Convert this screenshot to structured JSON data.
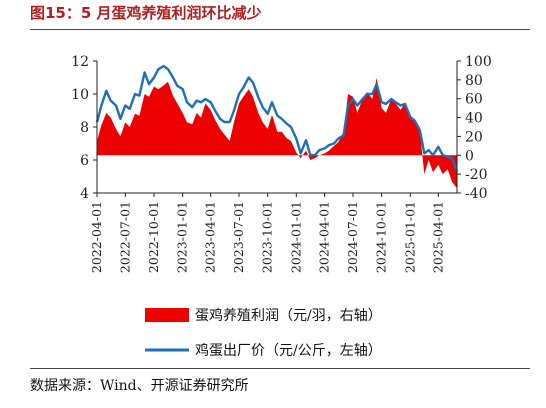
{
  "title": "图15：5 月蛋鸡养殖利润环比减少",
  "source": "数据来源：Wind、开源证券研究所",
  "colors": {
    "profit": "#ee0000",
    "price": "#1f6fb5",
    "title": "#b01e23"
  },
  "chart_data": {
    "type": "area+line",
    "x_ticks": [
      "2022-04-01",
      "2022-07-01",
      "2022-10-01",
      "2023-01-01",
      "2023-04-01",
      "2023-07-01",
      "2023-10-01",
      "2024-01-01",
      "2024-04-01",
      "2024-07-01",
      "2024-10-01",
      "2025-01-01",
      "2025-04-01"
    ],
    "y_left": {
      "min": 4,
      "max": 12,
      "ticks": [
        "4",
        "6",
        "8",
        "10",
        "12"
      ]
    },
    "y_right": {
      "min": -40,
      "max": 100,
      "ticks": [
        "-40",
        "-20",
        "0",
        "20",
        "40",
        "60",
        "80",
        "100"
      ]
    },
    "legend": "bottom",
    "series": [
      {
        "name": "蛋鸡养殖利润（元/羽，右轴）",
        "axis": "right",
        "kind": "area",
        "points": [
          [
            "2022-04-01",
            15
          ],
          [
            "2022-04-15",
            32
          ],
          [
            "2022-05-01",
            45
          ],
          [
            "2022-05-15",
            40
          ],
          [
            "2022-06-01",
            28
          ],
          [
            "2022-06-15",
            20
          ],
          [
            "2022-07-01",
            35
          ],
          [
            "2022-07-15",
            30
          ],
          [
            "2022-08-01",
            44
          ],
          [
            "2022-08-15",
            42
          ],
          [
            "2022-09-01",
            65
          ],
          [
            "2022-09-15",
            62
          ],
          [
            "2022-10-01",
            73
          ],
          [
            "2022-10-15",
            70
          ],
          [
            "2022-11-01",
            74
          ],
          [
            "2022-11-15",
            78
          ],
          [
            "2022-12-01",
            63
          ],
          [
            "2022-12-15",
            55
          ],
          [
            "2023-01-01",
            45
          ],
          [
            "2023-01-15",
            35
          ],
          [
            "2023-02-01",
            33
          ],
          [
            "2023-02-15",
            45
          ],
          [
            "2023-03-01",
            40
          ],
          [
            "2023-03-15",
            55
          ],
          [
            "2023-04-01",
            48
          ],
          [
            "2023-04-15",
            38
          ],
          [
            "2023-05-01",
            28
          ],
          [
            "2023-05-15",
            22
          ],
          [
            "2023-06-01",
            15
          ],
          [
            "2023-06-15",
            35
          ],
          [
            "2023-07-01",
            55
          ],
          [
            "2023-07-15",
            62
          ],
          [
            "2023-08-01",
            70
          ],
          [
            "2023-08-15",
            62
          ],
          [
            "2023-09-01",
            45
          ],
          [
            "2023-09-15",
            35
          ],
          [
            "2023-10-01",
            28
          ],
          [
            "2023-10-15",
            43
          ],
          [
            "2023-11-01",
            25
          ],
          [
            "2023-11-15",
            25
          ],
          [
            "2023-12-01",
            18
          ],
          [
            "2023-12-15",
            15
          ],
          [
            "2024-01-01",
            3
          ],
          [
            "2024-01-15",
            -3
          ],
          [
            "2024-02-01",
            5
          ],
          [
            "2024-02-15",
            -5
          ],
          [
            "2024-03-01",
            -3
          ],
          [
            "2024-03-15",
            0
          ],
          [
            "2024-04-01",
            2
          ],
          [
            "2024-04-15",
            5
          ],
          [
            "2024-05-01",
            10
          ],
          [
            "2024-05-15",
            14
          ],
          [
            "2024-06-01",
            25
          ],
          [
            "2024-06-15",
            65
          ],
          [
            "2024-07-01",
            62
          ],
          [
            "2024-07-15",
            45
          ],
          [
            "2024-08-01",
            60
          ],
          [
            "2024-08-15",
            67
          ],
          [
            "2024-09-01",
            60
          ],
          [
            "2024-09-15",
            82
          ],
          [
            "2024-10-01",
            50
          ],
          [
            "2024-10-15",
            45
          ],
          [
            "2024-11-01",
            60
          ],
          [
            "2024-11-15",
            55
          ],
          [
            "2024-12-01",
            48
          ],
          [
            "2024-12-15",
            56
          ],
          [
            "2025-01-01",
            40
          ],
          [
            "2025-01-15",
            36
          ],
          [
            "2025-02-01",
            26
          ],
          [
            "2025-02-15",
            -20
          ],
          [
            "2025-03-01",
            -5
          ],
          [
            "2025-03-15",
            -18
          ],
          [
            "2025-04-01",
            -10
          ],
          [
            "2025-04-15",
            -20
          ],
          [
            "2025-05-01",
            -15
          ],
          [
            "2025-05-15",
            -28
          ],
          [
            "2025-05-31",
            -35
          ]
        ]
      },
      {
        "name": "鸡蛋出厂价（元/公斤，左轴）",
        "axis": "left",
        "kind": "line",
        "points": [
          [
            "2022-04-01",
            8.3
          ],
          [
            "2022-04-15",
            9.3
          ],
          [
            "2022-05-01",
            10.2
          ],
          [
            "2022-05-15",
            9.6
          ],
          [
            "2022-06-01",
            9.3
          ],
          [
            "2022-06-15",
            8.5
          ],
          [
            "2022-07-01",
            9.3
          ],
          [
            "2022-07-15",
            9.1
          ],
          [
            "2022-08-01",
            10.0
          ],
          [
            "2022-08-15",
            9.9
          ],
          [
            "2022-09-01",
            11.3
          ],
          [
            "2022-09-15",
            10.6
          ],
          [
            "2022-10-01",
            11.0
          ],
          [
            "2022-10-15",
            11.5
          ],
          [
            "2022-11-01",
            11.7
          ],
          [
            "2022-11-15",
            11.5
          ],
          [
            "2022-12-01",
            11.0
          ],
          [
            "2022-12-15",
            10.5
          ],
          [
            "2023-01-01",
            10.3
          ],
          [
            "2023-01-15",
            9.5
          ],
          [
            "2023-02-01",
            9.2
          ],
          [
            "2023-02-15",
            9.6
          ],
          [
            "2023-03-01",
            9.5
          ],
          [
            "2023-03-15",
            9.7
          ],
          [
            "2023-04-01",
            9.5
          ],
          [
            "2023-04-15",
            9.0
          ],
          [
            "2023-05-01",
            8.5
          ],
          [
            "2023-05-15",
            8.3
          ],
          [
            "2023-06-01",
            8.3
          ],
          [
            "2023-06-15",
            9.0
          ],
          [
            "2023-07-01",
            10.0
          ],
          [
            "2023-07-15",
            10.4
          ],
          [
            "2023-08-01",
            11.0
          ],
          [
            "2023-08-15",
            10.7
          ],
          [
            "2023-09-01",
            9.8
          ],
          [
            "2023-09-15",
            9.2
          ],
          [
            "2023-10-01",
            8.8
          ],
          [
            "2023-10-15",
            9.5
          ],
          [
            "2023-11-01",
            8.7
          ],
          [
            "2023-11-15",
            8.5
          ],
          [
            "2023-12-01",
            8.2
          ],
          [
            "2023-12-15",
            8.0
          ],
          [
            "2024-01-01",
            7.3
          ],
          [
            "2024-01-15",
            6.4
          ],
          [
            "2024-02-01",
            7.2
          ],
          [
            "2024-02-15",
            6.3
          ],
          [
            "2024-03-01",
            6.3
          ],
          [
            "2024-03-15",
            6.6
          ],
          [
            "2024-04-01",
            6.7
          ],
          [
            "2024-04-15",
            6.9
          ],
          [
            "2024-05-01",
            7.0
          ],
          [
            "2024-05-15",
            7.3
          ],
          [
            "2024-06-01",
            7.5
          ],
          [
            "2024-06-15",
            9.3
          ],
          [
            "2024-07-01",
            9.7
          ],
          [
            "2024-07-15",
            9.3
          ],
          [
            "2024-08-01",
            9.7
          ],
          [
            "2024-08-15",
            10.0
          ],
          [
            "2024-09-01",
            10.0
          ],
          [
            "2024-09-15",
            10.6
          ],
          [
            "2024-10-01",
            9.5
          ],
          [
            "2024-10-15",
            9.4
          ],
          [
            "2024-11-01",
            9.7
          ],
          [
            "2024-11-15",
            9.5
          ],
          [
            "2024-12-01",
            9.3
          ],
          [
            "2024-12-15",
            9.4
          ],
          [
            "2025-01-01",
            8.6
          ],
          [
            "2025-01-15",
            8.4
          ],
          [
            "2025-02-01",
            7.8
          ],
          [
            "2025-02-15",
            6.4
          ],
          [
            "2025-03-01",
            6.6
          ],
          [
            "2025-03-15",
            6.3
          ],
          [
            "2025-04-01",
            6.8
          ],
          [
            "2025-04-15",
            6.3
          ],
          [
            "2025-05-01",
            6.2
          ],
          [
            "2025-05-15",
            6.1
          ],
          [
            "2025-05-31",
            5.3
          ]
        ]
      }
    ]
  }
}
